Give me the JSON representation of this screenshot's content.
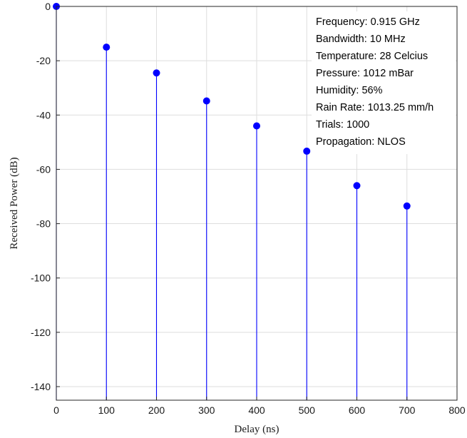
{
  "chart_data": {
    "type": "stem",
    "title": "",
    "xlabel": "Delay (ns)",
    "ylabel": "Received Power (dB)",
    "xlim": [
      0,
      800
    ],
    "ylim": [
      -145,
      0
    ],
    "xticks": [
      0,
      100,
      200,
      300,
      400,
      500,
      600,
      700,
      800
    ],
    "yticks": [
      0,
      -20,
      -40,
      -60,
      -80,
      -100,
      -120,
      -140
    ],
    "grid": true,
    "series": [
      {
        "x": [
          0,
          100,
          200,
          300,
          400,
          500,
          600,
          700
        ],
        "y": [
          0,
          -15,
          -24.5,
          -34.8,
          -44,
          -53.3,
          -66,
          -73.5
        ],
        "color": "#0000ff"
      }
    ],
    "annotations": [
      "Frequency: 0.915 GHz",
      "Bandwidth: 10 MHz",
      "Temperature: 28 Celcius",
      "Pressure: 1012 mBar",
      "Humidity: 56%",
      "Rain Rate: 1013.25 mm/h",
      "Trials: 1000",
      "Propagation: NLOS"
    ]
  }
}
